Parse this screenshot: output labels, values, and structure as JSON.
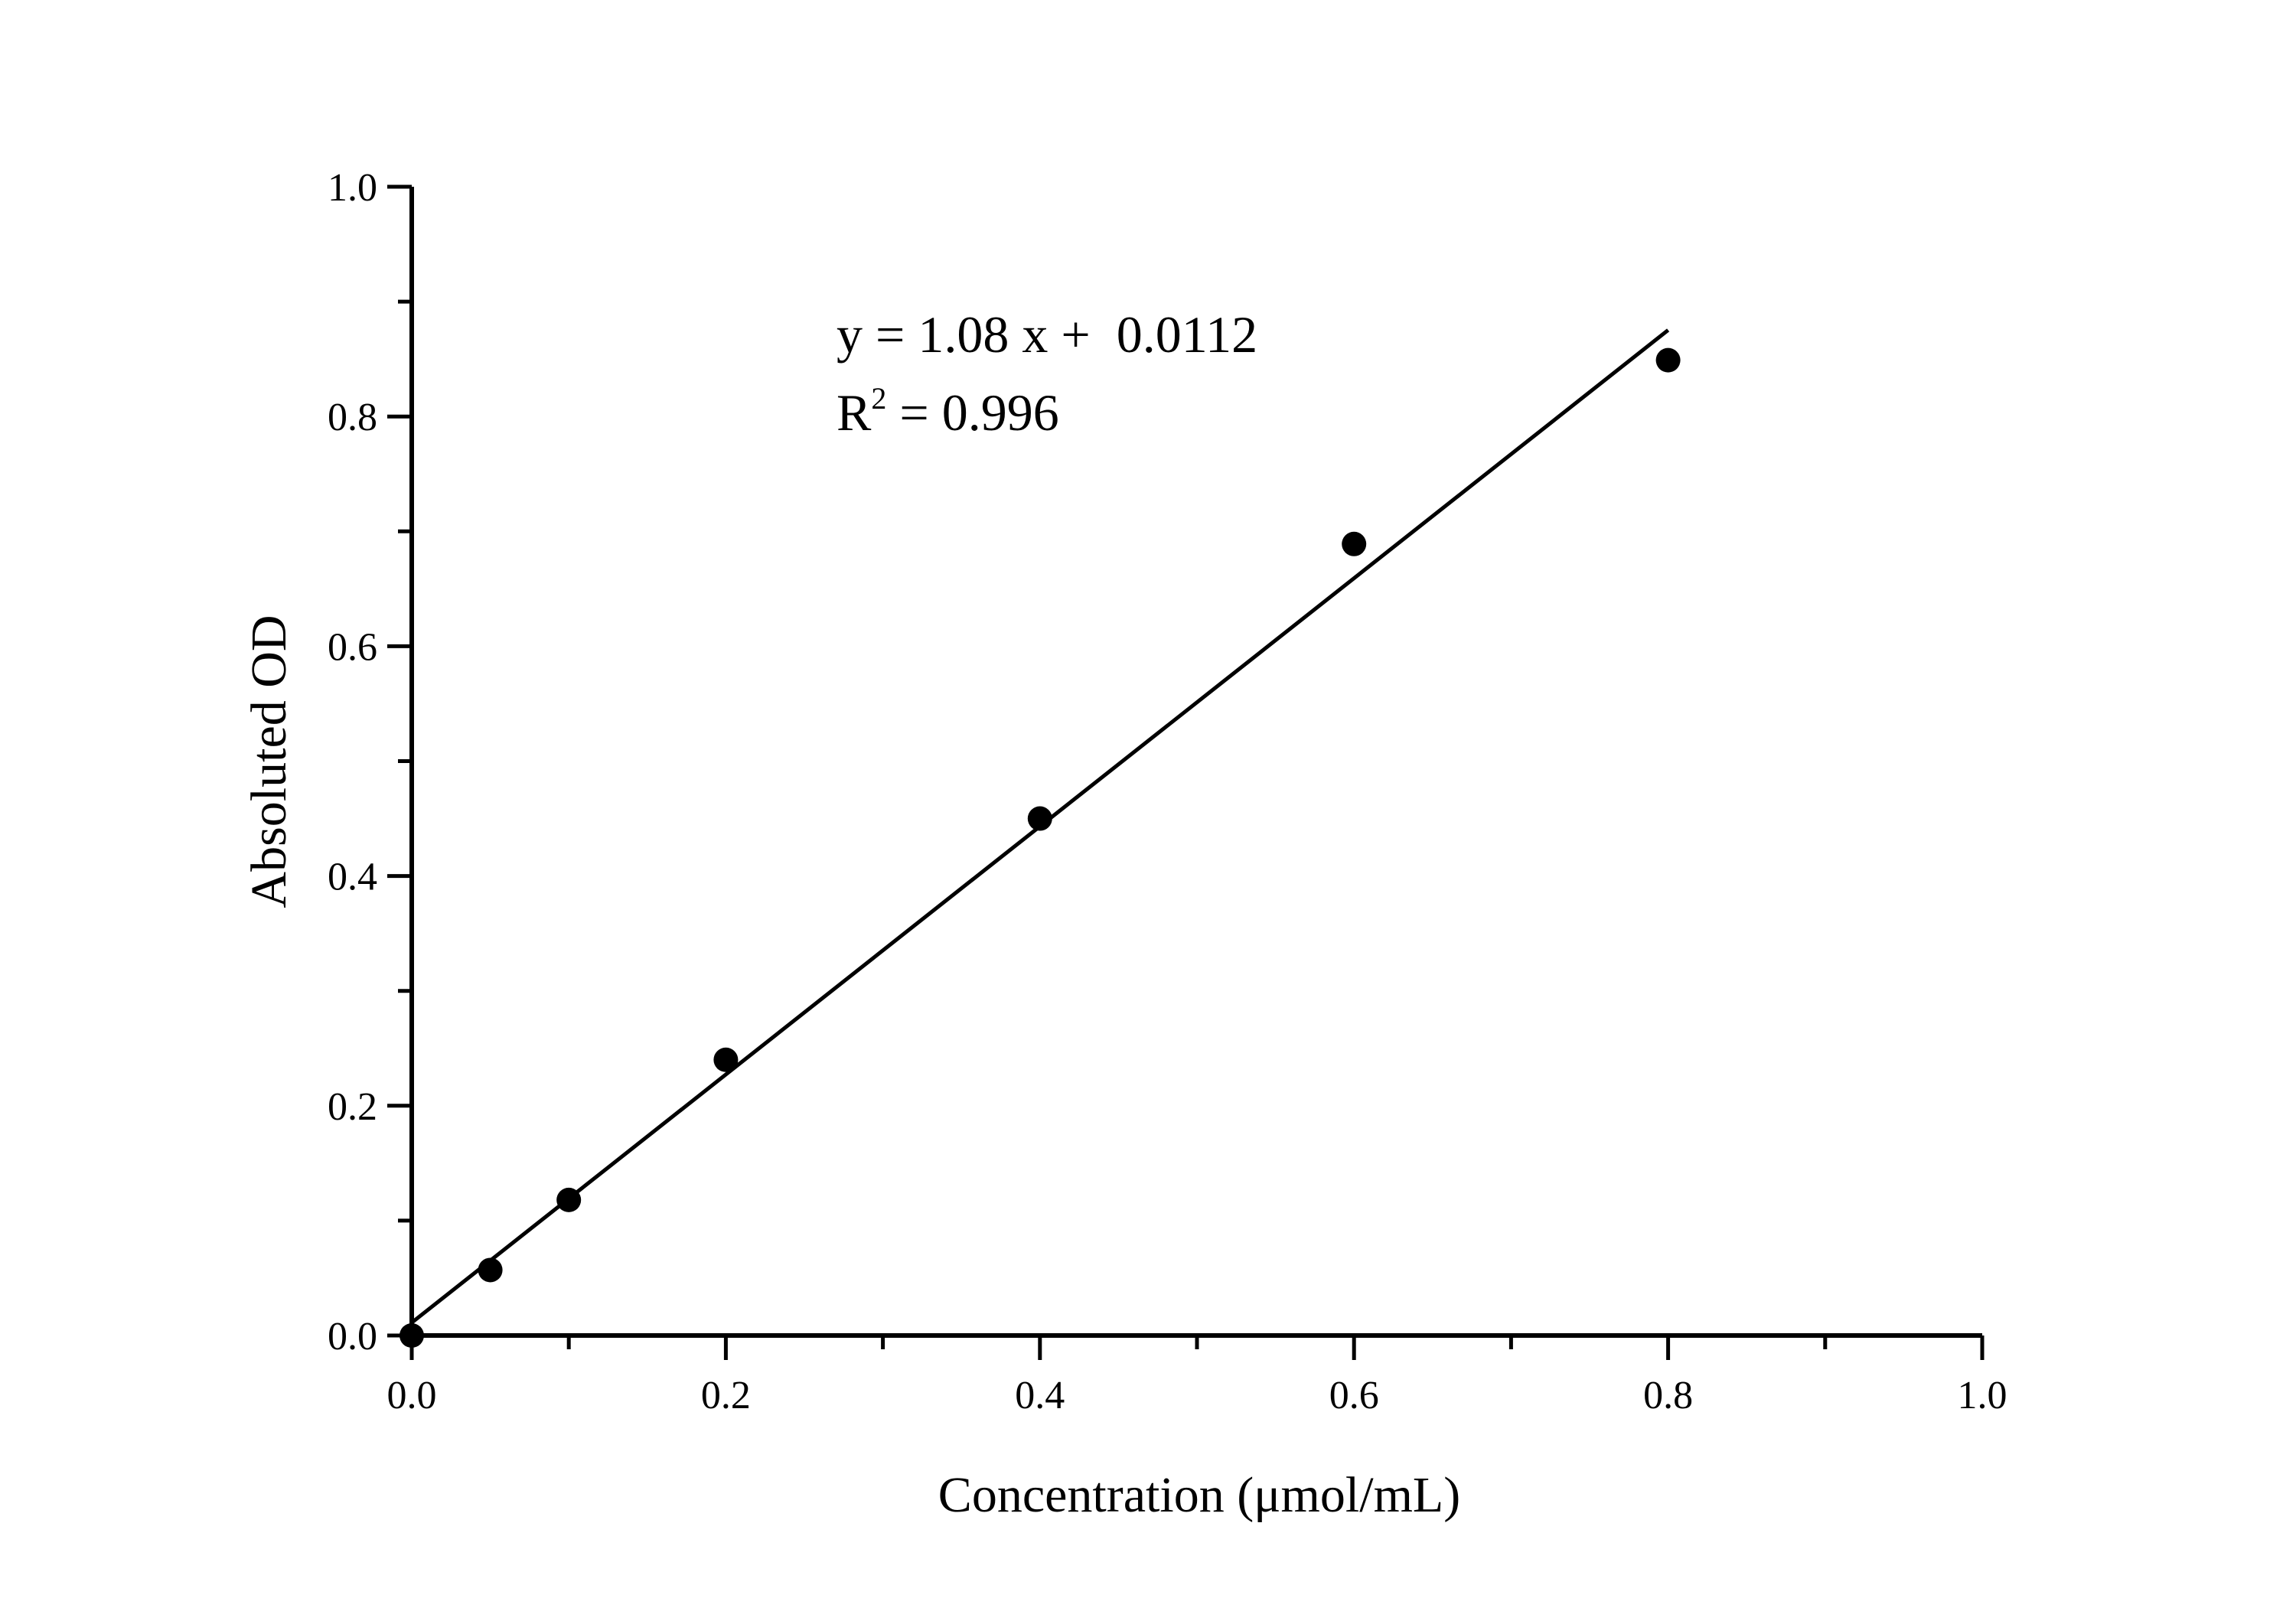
{
  "chart_data": {
    "type": "scatter",
    "title": "",
    "xlabel": "Concentration (μmol/mL)",
    "ylabel": "Absoluted OD",
    "xlim": [
      0,
      1.0
    ],
    "ylim": [
      0,
      1.0
    ],
    "grid": false,
    "x_ticks": [
      "0.0",
      "0.2",
      "0.4",
      "0.6",
      "0.8",
      "1.0"
    ],
    "y_ticks": [
      "0.0",
      "0.2",
      "0.4",
      "0.6",
      "0.8",
      "1.0"
    ],
    "x_tick_values": [
      0,
      0.2,
      0.4,
      0.6,
      0.8,
      1.0
    ],
    "y_tick_values": [
      0,
      0.2,
      0.4,
      0.6,
      0.8,
      1.0
    ],
    "x_minor_tick_values": [
      0.1,
      0.3,
      0.5,
      0.7,
      0.9
    ],
    "y_minor_tick_values": [
      0.1,
      0.3,
      0.5,
      0.7,
      0.9
    ],
    "points": {
      "x": [
        0,
        0.05,
        0.1,
        0.2,
        0.4,
        0.6,
        0.8
      ],
      "y": [
        0.0,
        0.057,
        0.118,
        0.24,
        0.45,
        0.689,
        0.849
      ]
    },
    "fit": {
      "slope": 1.08,
      "intercept": 0.0112,
      "x_range": [
        0,
        0.8
      ]
    },
    "annotation": {
      "equation": "y = 1.08 x +  0.0112",
      "r2_prefix": "R",
      "r2_sup": "2",
      "r2_value": " = 0.996"
    },
    "colors": {
      "marker": "#000000",
      "line": "#000000"
    }
  }
}
